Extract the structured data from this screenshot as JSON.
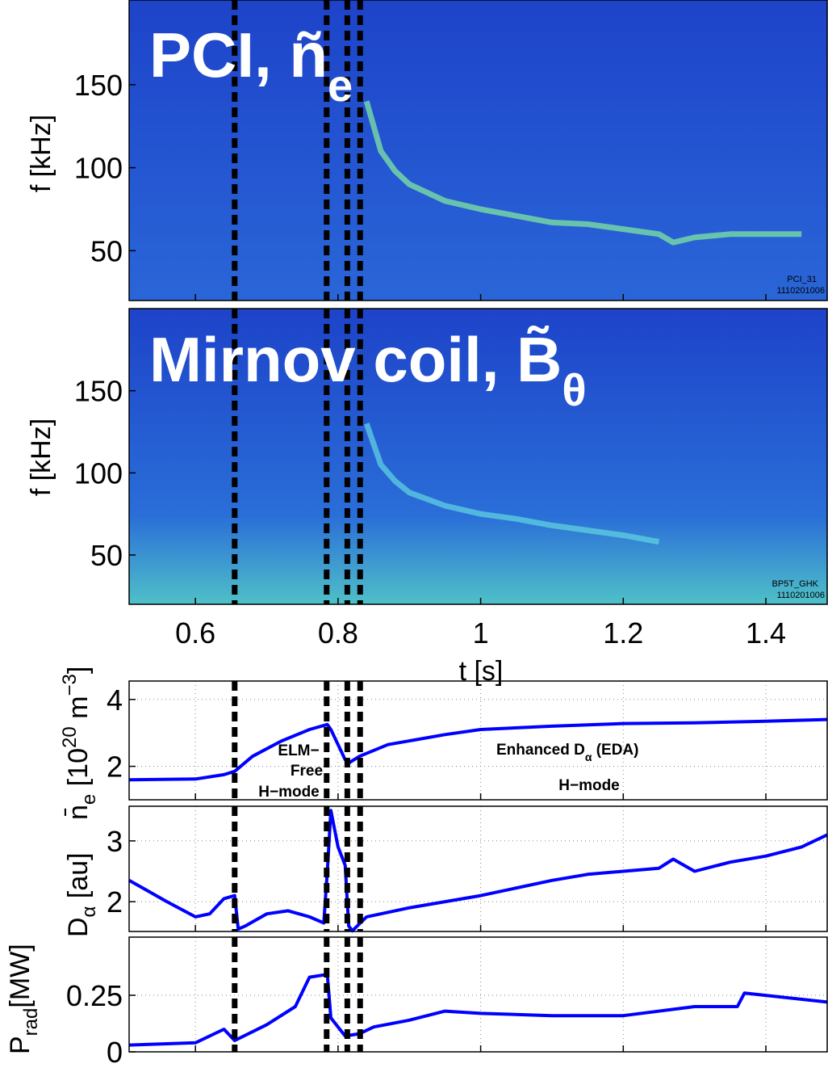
{
  "chart_data": [
    {
      "type": "spectrogram",
      "title": [
        "PCI, ñ",
        "e"
      ],
      "y_label": "f [kHz]",
      "xlim": [
        0.507,
        1.486
      ],
      "ylim": [
        20,
        201
      ],
      "yticks": [
        50,
        100,
        150
      ],
      "xticks": [
        0.6,
        0.8,
        1,
        1.2,
        1.4
      ],
      "xtick_labels": false,
      "x": [
        0.84,
        0.86,
        0.88,
        0.9,
        0.95,
        1.0,
        1.05,
        1.1,
        1.15,
        1.2,
        1.25,
        1.27,
        1.3,
        1.35,
        1.4,
        1.45
      ],
      "values": [
        140,
        110,
        98,
        90,
        80,
        75,
        71,
        67,
        66,
        63,
        60,
        55,
        58,
        60,
        60,
        60
      ],
      "color": "#7fe6a0",
      "annotations": [
        "PCI_31",
        "1110201006"
      ],
      "vlines": [
        0.655,
        0.784,
        0.813,
        0.831
      ]
    },
    {
      "type": "spectrogram",
      "title": [
        "Mirnov coil, B̃",
        "θ"
      ],
      "y_label": "f [kHz]",
      "x_label": "t [s]",
      "xlim": [
        0.507,
        1.486
      ],
      "ylim": [
        20,
        200
      ],
      "yticks": [
        50,
        100,
        150
      ],
      "xticks": [
        0.6,
        0.8,
        1,
        1.2,
        1.4
      ],
      "xtick_labels": true,
      "x": [
        0.84,
        0.86,
        0.88,
        0.9,
        0.95,
        1.0,
        1.05,
        1.1,
        1.15,
        1.2,
        1.25
      ],
      "values": [
        130,
        105,
        95,
        88,
        80,
        75,
        72,
        68,
        65,
        62,
        58
      ],
      "color": "#5fd0e0",
      "annotations": [
        "BP5T_GHK",
        "1110201006"
      ],
      "vlines": [
        0.655,
        0.784,
        0.813,
        0.831
      ]
    },
    {
      "type": "line",
      "y_label": [
        "n̄",
        "e",
        " [10",
        "20",
        " m",
        "−3",
        "]"
      ],
      "xlim": [
        0.507,
        1.486
      ],
      "ylim": [
        1.0,
        4.55
      ],
      "yticks": [
        2,
        4
      ],
      "xticks": [
        0.6,
        0.8,
        1,
        1.2,
        1.4
      ],
      "xtick_labels": false,
      "grid": true,
      "x": [
        0.507,
        0.6,
        0.64,
        0.655,
        0.68,
        0.72,
        0.76,
        0.785,
        0.79,
        0.81,
        0.815,
        0.83,
        0.87,
        0.95,
        1.0,
        1.1,
        1.2,
        1.3,
        1.4,
        1.486
      ],
      "values": [
        1.6,
        1.62,
        1.75,
        1.85,
        2.3,
        2.75,
        3.1,
        3.25,
        3.1,
        2.2,
        2.1,
        2.3,
        2.65,
        2.95,
        3.1,
        3.2,
        3.28,
        3.3,
        3.35,
        3.4
      ],
      "color": "#0000ff",
      "annotations": [
        "ELM−",
        "Free",
        "H−mode",
        "Enhanced D",
        "α",
        " (EDA)",
        "H−mode"
      ],
      "vlines": [
        0.655,
        0.784,
        0.813,
        0.831
      ]
    },
    {
      "type": "line",
      "y_label": [
        "D",
        "α",
        " [au]"
      ],
      "xlim": [
        0.507,
        1.486
      ],
      "ylim": [
        1.51,
        3.57
      ],
      "yticks": [
        2,
        3
      ],
      "xticks": [
        0.6,
        0.8,
        1,
        1.2,
        1.4
      ],
      "xtick_labels": false,
      "grid": true,
      "x": [
        0.507,
        0.53,
        0.56,
        0.6,
        0.62,
        0.64,
        0.655,
        0.66,
        0.67,
        0.7,
        0.73,
        0.76,
        0.78,
        0.785,
        0.79,
        0.8,
        0.81,
        0.815,
        0.82,
        0.84,
        0.9,
        1.0,
        1.1,
        1.15,
        1.2,
        1.25,
        1.27,
        1.3,
        1.35,
        1.4,
        1.45,
        1.486
      ],
      "values": [
        2.35,
        2.2,
        2.0,
        1.75,
        1.8,
        2.05,
        2.1,
        1.55,
        1.6,
        1.8,
        1.85,
        1.75,
        1.65,
        2.5,
        3.5,
        2.9,
        2.6,
        1.6,
        1.52,
        1.75,
        1.9,
        2.1,
        2.35,
        2.45,
        2.5,
        2.55,
        2.7,
        2.5,
        2.65,
        2.75,
        2.9,
        3.1
      ],
      "color": "#0000ff",
      "vlines": [
        0.655,
        0.784,
        0.813,
        0.831
      ]
    },
    {
      "type": "line",
      "y_label": [
        "P",
        "rad",
        "[MW]"
      ],
      "xlim": [
        0.507,
        1.486
      ],
      "ylim": [
        0,
        0.507
      ],
      "yticks": [
        0,
        0.25
      ],
      "xticks": [
        0.6,
        0.8,
        1,
        1.2,
        1.4
      ],
      "xtick_labels": false,
      "grid": true,
      "x": [
        0.507,
        0.6,
        0.64,
        0.655,
        0.7,
        0.74,
        0.76,
        0.78,
        0.785,
        0.79,
        0.81,
        0.83,
        0.85,
        0.9,
        0.95,
        1.0,
        1.1,
        1.2,
        1.3,
        1.36,
        1.37,
        1.486
      ],
      "values": [
        0.03,
        0.04,
        0.1,
        0.05,
        0.12,
        0.2,
        0.33,
        0.34,
        0.34,
        0.15,
        0.07,
        0.08,
        0.11,
        0.14,
        0.18,
        0.17,
        0.16,
        0.16,
        0.2,
        0.2,
        0.26,
        0.22
      ],
      "color": "#0000ff",
      "vlines": [
        0.655,
        0.784,
        0.813,
        0.831
      ]
    }
  ]
}
